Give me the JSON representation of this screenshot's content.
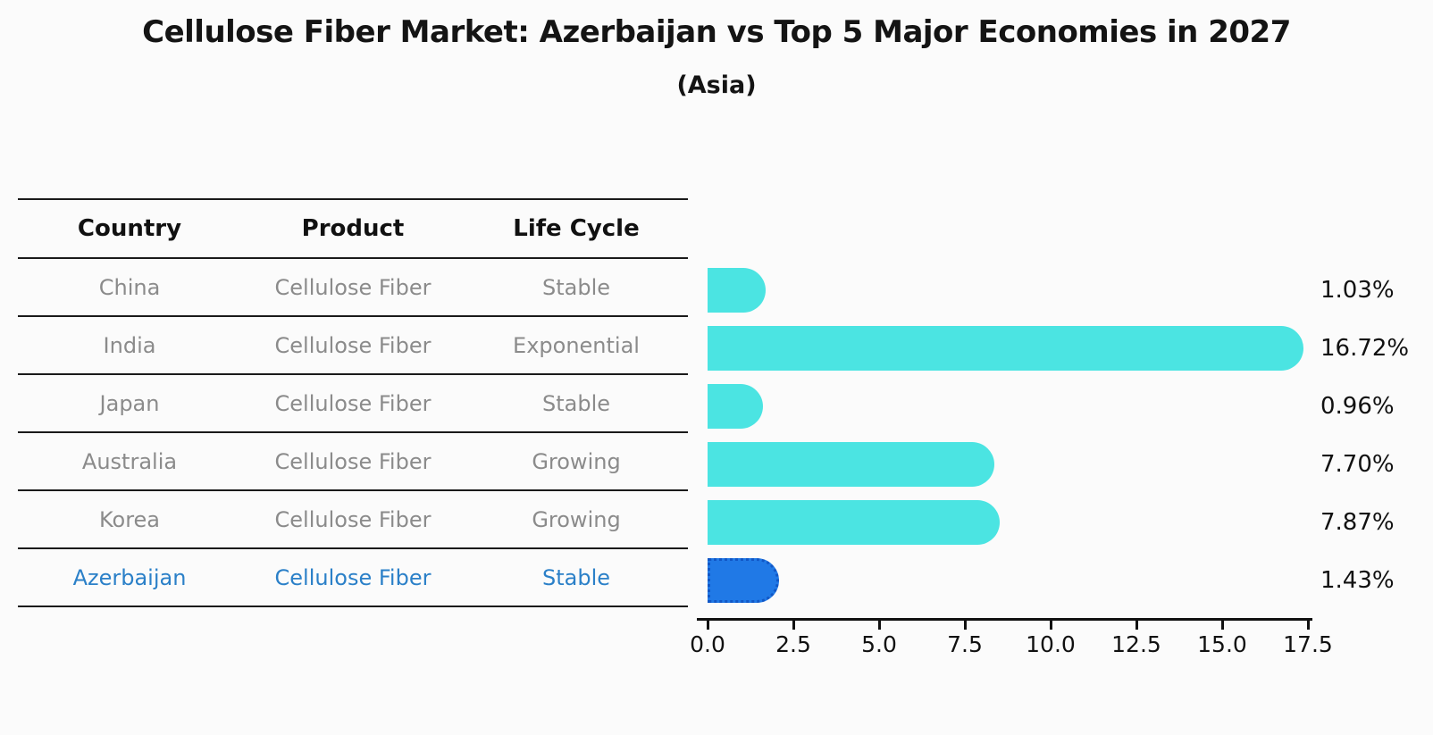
{
  "title": "Cellulose Fiber Market: Azerbaijan vs Top 5 Major Economies in 2027",
  "subtitle": "(Asia)",
  "table": {
    "headers": [
      "Country",
      "Product",
      "Life Cycle"
    ],
    "rows": [
      {
        "country": "China",
        "product": "Cellulose Fiber",
        "life_cycle": "Stable",
        "value_label": "1.03%"
      },
      {
        "country": "India",
        "product": "Cellulose Fiber",
        "life_cycle": "Exponential",
        "value_label": "16.72%"
      },
      {
        "country": "Japan",
        "product": "Cellulose Fiber",
        "life_cycle": "Stable",
        "value_label": "0.96%"
      },
      {
        "country": "Australia",
        "product": "Cellulose Fiber",
        "life_cycle": "Growing",
        "value_label": "7.70%"
      },
      {
        "country": "Korea",
        "product": "Cellulose Fiber",
        "life_cycle": "Growing",
        "value_label": "7.87%"
      },
      {
        "country": "Azerbaijan",
        "product": "Cellulose Fiber",
        "life_cycle": "Stable",
        "value_label": "1.43%",
        "highlighted": true
      }
    ]
  },
  "chart_data": {
    "type": "bar",
    "orientation": "horizontal",
    "title": "Cellulose Fiber Market: Azerbaijan vs Top 5 Major Economies in 2027",
    "subtitle": "(Asia)",
    "categories": [
      "China",
      "India",
      "Japan",
      "Australia",
      "Korea",
      "Azerbaijan"
    ],
    "values": [
      1.03,
      16.72,
      0.96,
      7.7,
      7.87,
      1.43
    ],
    "value_labels": [
      "1.03%",
      "16.72%",
      "0.96%",
      "7.70%",
      "7.87%",
      "1.43%"
    ],
    "unit": "%",
    "xlim": [
      0,
      17.5
    ],
    "x_ticks": [
      "0.0",
      "2.5",
      "5.0",
      "7.5",
      "10.0",
      "12.5",
      "15.0",
      "17.5"
    ],
    "grid": false,
    "legend": "none",
    "highlighted_category": "Azerbaijan",
    "colors": {
      "default_bar": "#4be4e2",
      "highlight_bar": "#2079e6",
      "highlight_bar_border": "#1157c6",
      "highlight_text": "#2b80c8",
      "table_text": "#8b8b8b",
      "axis_text": "#111111"
    }
  }
}
